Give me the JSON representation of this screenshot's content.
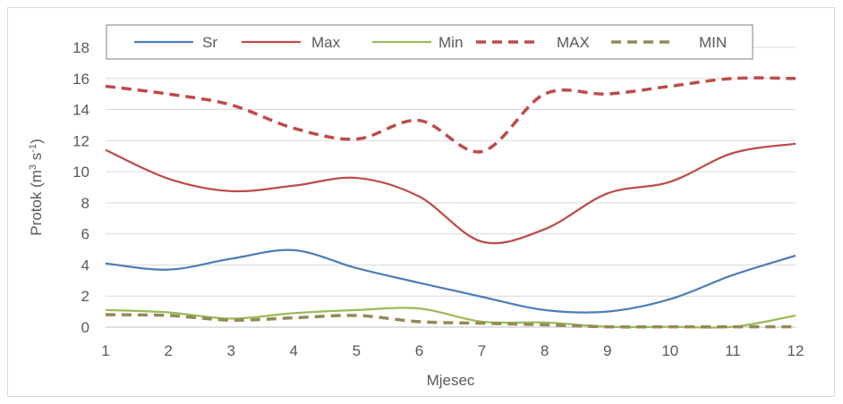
{
  "chart_data": {
    "type": "line",
    "title": "",
    "xlabel": "Mjesec",
    "ylabel_parts": [
      "Protok (m",
      "3",
      " s",
      "-1",
      ")"
    ],
    "categories": [
      "1",
      "2",
      "3",
      "4",
      "5",
      "6",
      "7",
      "8",
      "9",
      "10",
      "11",
      "12"
    ],
    "ylim": [
      0,
      18
    ],
    "yticks": [
      "0",
      "2",
      "4",
      "6",
      "8",
      "10",
      "12",
      "14",
      "16",
      "18"
    ],
    "grid": true,
    "legend_position": "top",
    "series": [
      {
        "name": "Sr",
        "color": "#4a7ebb",
        "dashed": false,
        "values": [
          4.1,
          3.7,
          4.4,
          4.95,
          3.8,
          2.85,
          1.95,
          1.1,
          1.0,
          1.8,
          3.35,
          4.6
        ]
      },
      {
        "name": "Max",
        "color": "#be4b48",
        "dashed": false,
        "values": [
          11.4,
          9.55,
          8.75,
          9.1,
          9.6,
          8.4,
          5.5,
          6.3,
          8.6,
          9.35,
          11.2,
          11.8
        ]
      },
      {
        "name": "Min",
        "color": "#9bbb59",
        "dashed": false,
        "values": [
          1.1,
          0.95,
          0.55,
          0.9,
          1.1,
          1.2,
          0.35,
          0.3,
          0.02,
          0.02,
          0.02,
          0.75
        ]
      },
      {
        "name": "MAX",
        "color": "#be4b48",
        "dashed": true,
        "values": [
          15.5,
          15.0,
          14.3,
          12.8,
          12.1,
          13.3,
          11.3,
          15.0,
          15.0,
          15.5,
          16.0,
          16.0
        ]
      },
      {
        "name": "MIN",
        "color": "#948a54",
        "dashed": true,
        "values": [
          0.8,
          0.75,
          0.45,
          0.6,
          0.75,
          0.35,
          0.25,
          0.15,
          0.02,
          0.02,
          0.02,
          0.02
        ]
      }
    ]
  }
}
